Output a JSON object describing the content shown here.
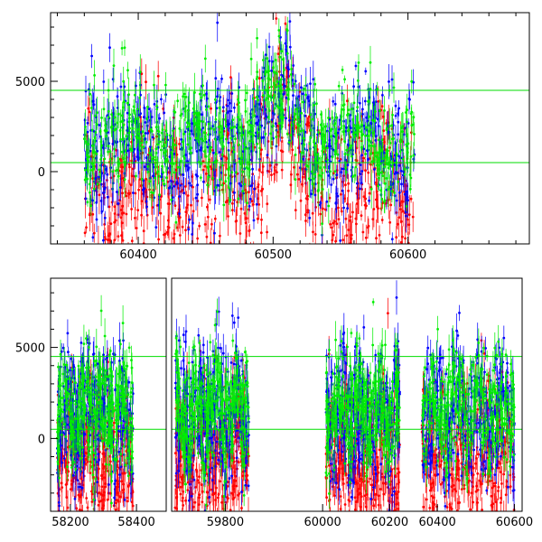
{
  "chart_data": [
    {
      "type": "scatter",
      "title": "",
      "xlabel": "",
      "ylabel": "",
      "xlim": [
        60335,
        60690
      ],
      "ylim": [
        -4000,
        8800
      ],
      "grid": false,
      "x_ticks": [
        60400,
        60500,
        60600
      ],
      "y_ticks": [
        0,
        5000
      ],
      "x_minor_step": 20,
      "y_minor_step": 1000,
      "x_tick_labels": [
        "60400",
        "60500",
        "60600"
      ],
      "y_tick_labels": [
        "0",
        "5000"
      ],
      "hlines": [
        500,
        4500
      ],
      "hline_color": "#00dd00",
      "segments": [
        [
          60360,
          60605
        ]
      ],
      "series": [
        {
          "color": "#ff0000",
          "mean": -1200,
          "spread": 2200,
          "flare": {
            "center": 60505,
            "width": 12,
            "amp": 5200
          }
        },
        {
          "color": "#0000ff",
          "mean": 1300,
          "spread": 1800,
          "flare": {
            "center": 60500,
            "width": 22,
            "amp": 2800
          }
        },
        {
          "color": "#00ee00",
          "mean": 1600,
          "spread": 1500,
          "flare": {
            "center": 60500,
            "width": 25,
            "amp": 2200
          }
        }
      ]
    },
    {
      "type": "scatter",
      "title": "",
      "xlabel": "",
      "ylabel": "",
      "ylim": [
        -4000,
        8800
      ],
      "grid": false,
      "broken_axis": true,
      "y_ticks": [
        0,
        5000
      ],
      "y_minor_step": 1000,
      "y_tick_labels": [
        "0",
        "5000"
      ],
      "hlines": [
        500,
        4500
      ],
      "hline_color": "#00dd00",
      "panels": [
        {
          "xlim": [
            58140,
            58490
          ],
          "x_ticks": [
            58200,
            58400
          ],
          "x_tick_labels": [
            "58200",
            "58400"
          ],
          "segments": [
            [
              58160,
              58390
            ]
          ]
        },
        {
          "xlim": [
            59640,
            59990
          ],
          "x_ticks": [
            59800
          ],
          "x_tick_labels": [
            "59800"
          ],
          "segments": [
            [
              59650,
              59870
            ]
          ]
        },
        {
          "xlim": [
            59900,
            60250
          ],
          "x_ticks": [
            60000,
            60200
          ],
          "x_tick_labels": [
            "60000",
            "60200"
          ],
          "segments": [
            [
              60010,
              60230
            ]
          ]
        },
        {
          "xlim": [
            60320,
            60620
          ],
          "x_ticks": [
            60400,
            60600
          ],
          "x_tick_labels": [
            "60400",
            "60600"
          ],
          "segments": [
            [
              60360,
              60600
            ]
          ]
        }
      ],
      "series": [
        {
          "color": "#ff0000",
          "mean": -1300,
          "spread": 2100
        },
        {
          "color": "#0000ff",
          "mean": 1300,
          "spread": 1800
        },
        {
          "color": "#00ee00",
          "mean": 1700,
          "spread": 1500
        }
      ]
    }
  ]
}
